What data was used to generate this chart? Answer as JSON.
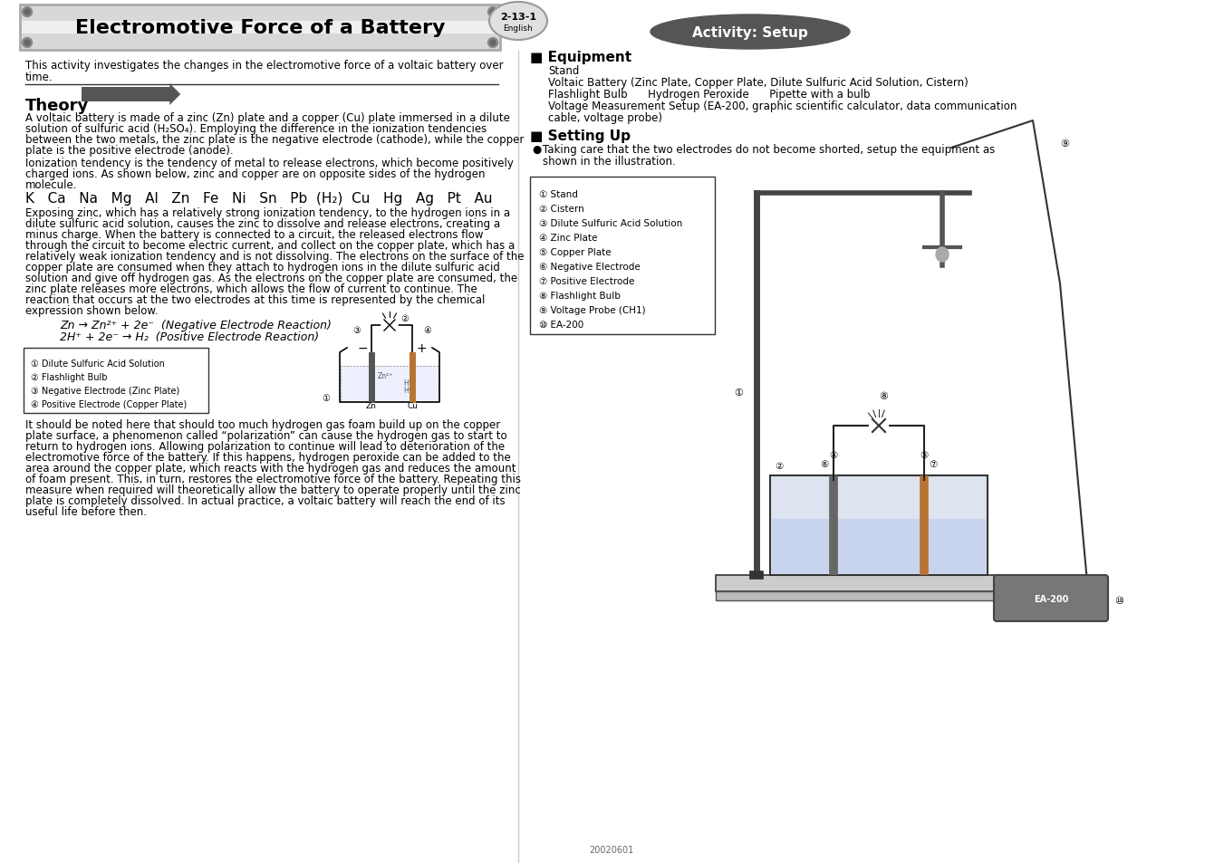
{
  "title": "Electromotive Force of a Battery",
  "page_number": "2-13-1",
  "page_lang": "English",
  "activity_title": "Activity: Setup",
  "intro_line1": "This activity investigates the changes in the electromotive force of a voltaic battery over",
  "intro_line2": "time.",
  "theory_title": "Theory",
  "theory_para1_lines": [
    "A voltaic battery is made of a zinc (Zn) plate and a copper (Cu) plate immersed in a dilute",
    "solution of sulfuric acid (H₂SO₄). Employing the difference in the ionization tendencies",
    "between the two metals, the zinc plate is the negative electrode (cathode), while the copper",
    "plate is the positive electrode (anode)."
  ],
  "theory_para2_lines": [
    "Ionization tendency is the tendency of metal to release electrons, which become positively",
    "charged ions. As shown below, zinc and copper are on opposite sides of the hydrogen",
    "molecule."
  ],
  "ionization_series": "K   Ca   Na   Mg   Al   Zn   Fe   Ni   Sn   Pb  (H₂)  Cu   Hg   Ag   Pt   Au",
  "theory_para3_lines": [
    "Exposing zinc, which has a relatively strong ionization tendency, to the hydrogen ions in a",
    "dilute sulfuric acid solution, causes the zinc to dissolve and release electrons, creating a",
    "minus charge. When the battery is connected to a circuit, the released electrons flow",
    "through the circuit to become electric current, and collect on the copper plate, which has a",
    "relatively weak ionization tendency and is not dissolving. The electrons on the surface of the",
    "copper plate are consumed when they attach to hydrogen ions in the dilute sulfuric acid",
    "solution and give off hydrogen gas. As the electrons on the copper plate are consumed, the",
    "zinc plate releases more electrons, which allows the flow of current to continue. The",
    "reaction that occurs at the two electrodes at this time is represented by the chemical",
    "expression shown below."
  ],
  "eq1": "Zn → Zn²⁺ + 2e⁻  (Negative Electrode Reaction)",
  "eq2": "2H⁺ + 2e⁻ → H₂  (Positive Electrode Reaction)",
  "diag_labels": [
    "① Dilute Sulfuric Acid Solution",
    "② Flashlight Bulb",
    "③ Negative Electrode (Zinc Plate)",
    "④ Positive Electrode (Copper Plate)"
  ],
  "theory_para4_lines": [
    "It should be noted here that should too much hydrogen gas foam build up on the copper",
    "plate surface, a phenomenon called “polarization” can cause the hydrogen gas to start to",
    "return to hydrogen ions. Allowing polarization to continue will lead to deterioration of the",
    "electromotive force of the battery. If this happens, hydrogen peroxide can be added to the",
    "area around the copper plate, which reacts with the hydrogen gas and reduces the amount",
    "of foam present. This, in turn, restores the electromotive force of the battery. Repeating this",
    "measure when required will theoretically allow the battery to operate properly until the zinc",
    "plate is completely dissolved. In actual practice, a voltaic battery will reach the end of its",
    "useful life before then."
  ],
  "equipment_title": "Equipment",
  "equip_items": [
    "Stand",
    "Voltaic Battery (Zinc Plate, Copper Plate, Dilute Sulfuric Acid Solution, Cistern)",
    "Flashlight Bulb      Hydrogen Peroxide      Pipette with a bulb",
    "Voltage Measurement Setup (EA-200, graphic scientific calculator, data communication",
    "cable, voltage probe)"
  ],
  "setting_up_title": "Setting Up",
  "setup_text_lines": [
    "Taking care that the two electrodes do not become shorted, setup the equipment as",
    "shown in the illustration."
  ],
  "setup_labels": [
    "① Stand",
    "② Cistern",
    "③ Dilute Sulfuric Acid Solution",
    "④ Zinc Plate",
    "⑤ Copper Plate",
    "⑥ Negative Electrode",
    "⑦ Positive Electrode",
    "⑧ Flashlight Bulb",
    "⑨ Voltage Probe (CH1)",
    "⑩ EA-200"
  ],
  "footer": "20020601",
  "body_fs": 8.5,
  "small_fs": 7.5,
  "title_fs": 16,
  "heading_fs": 12,
  "ion_fs": 11,
  "eq_fs": 9
}
